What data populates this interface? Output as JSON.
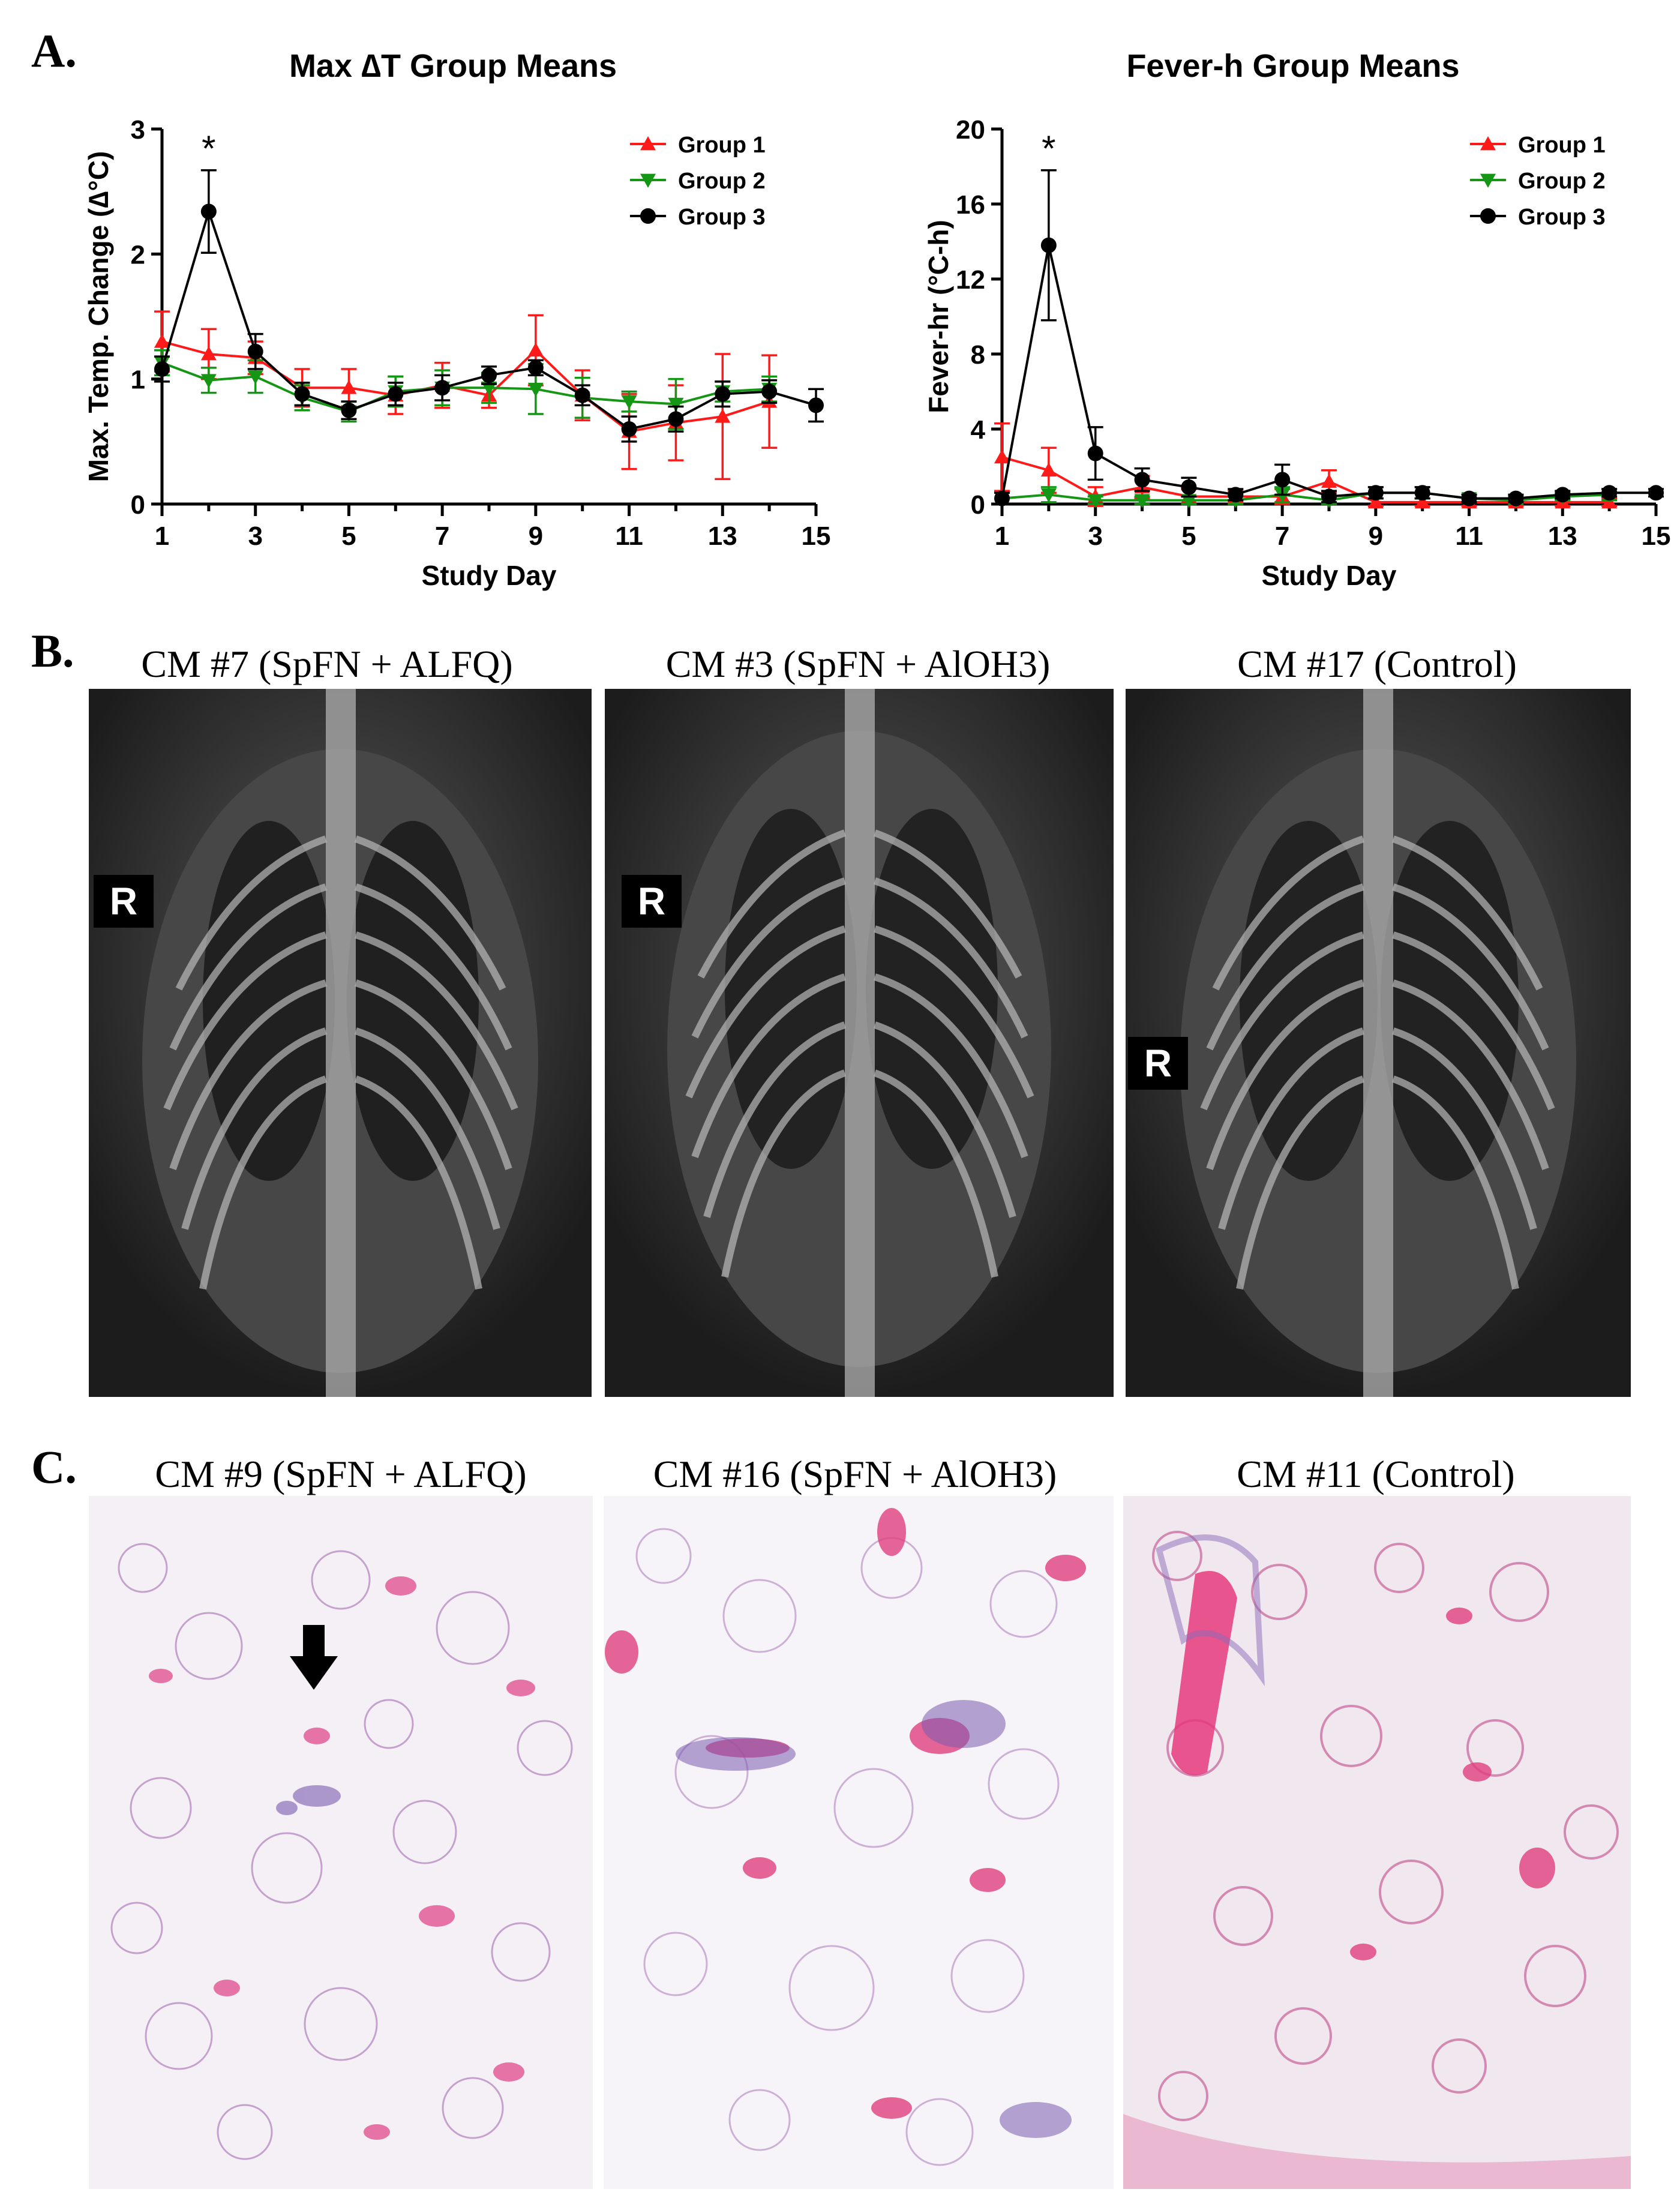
{
  "panels": {
    "a": {
      "letter": "A."
    },
    "b": {
      "letter": "B."
    },
    "c": {
      "letter": "C."
    }
  },
  "chart_data": [
    {
      "type": "line",
      "title": "Max ∆T Group Means",
      "xlabel": "Study  Day",
      "ylabel": "Max. Temp. Change (∆°C)",
      "xlim": [
        1,
        15
      ],
      "ylim": [
        0,
        3
      ],
      "xticks": [
        1,
        3,
        5,
        7,
        9,
        11,
        13,
        15
      ],
      "yticks": [
        0,
        1,
        2,
        3
      ],
      "legend_position": "top-right",
      "annotation": {
        "text": "*",
        "x": 2
      },
      "series": [
        {
          "name": "Group 1",
          "color": "#ff1a1a",
          "marker": "triangle-up",
          "x": [
            1,
            2,
            3,
            4,
            5,
            6,
            7,
            8,
            9,
            10,
            11,
            12,
            13,
            14
          ],
          "y": [
            1.3,
            1.2,
            1.17,
            0.93,
            0.93,
            0.87,
            0.95,
            0.87,
            1.23,
            0.87,
            0.58,
            0.65,
            0.7,
            0.82
          ],
          "err": [
            0.24,
            0.2,
            0.13,
            0.15,
            0.15,
            0.15,
            0.18,
            0.1,
            0.28,
            0.2,
            0.3,
            0.3,
            0.5,
            0.37
          ]
        },
        {
          "name": "Group 2",
          "color": "#159615",
          "marker": "triangle-down",
          "x": [
            1,
            2,
            3,
            4,
            5,
            6,
            7,
            8,
            9,
            10,
            11,
            12,
            13,
            14
          ],
          "y": [
            1.13,
            0.99,
            1.02,
            0.85,
            0.74,
            0.9,
            0.93,
            0.93,
            0.92,
            0.85,
            0.82,
            0.8,
            0.9,
            0.92
          ],
          "err": [
            0.1,
            0.1,
            0.13,
            0.1,
            0.08,
            0.12,
            0.14,
            0.12,
            0.2,
            0.16,
            0.08,
            0.2,
            0.08,
            0.1
          ]
        },
        {
          "name": "Group 3",
          "color": "#000000",
          "marker": "circle",
          "x": [
            1,
            2,
            3,
            4,
            5,
            6,
            7,
            8,
            9,
            10,
            11,
            12,
            13,
            14,
            15
          ],
          "y": [
            1.08,
            2.34,
            1.22,
            0.88,
            0.75,
            0.88,
            0.93,
            1.03,
            1.09,
            0.87,
            0.6,
            0.68,
            0.88,
            0.9,
            0.79
          ],
          "err": [
            0.1,
            0.33,
            0.14,
            0.09,
            0.07,
            0.09,
            0.1,
            0.07,
            0.06,
            0.08,
            0.1,
            0.1,
            0.1,
            0.09,
            0.13
          ]
        }
      ]
    },
    {
      "type": "line",
      "title": "Fever-h Group Means",
      "xlabel": "Study  Day",
      "ylabel": "Fever-hr (°C-h)",
      "xlim": [
        1,
        15
      ],
      "ylim": [
        0,
        20
      ],
      "xticks": [
        1,
        3,
        5,
        7,
        9,
        11,
        13,
        15
      ],
      "yticks": [
        0,
        4,
        8,
        12,
        16,
        20
      ],
      "legend_position": "top-right",
      "annotation": {
        "text": "*",
        "x": 2
      },
      "series": [
        {
          "name": "Group 1",
          "color": "#ff1a1a",
          "marker": "triangle-up",
          "x": [
            1,
            2,
            3,
            4,
            5,
            6,
            7,
            8,
            9,
            10,
            11,
            12,
            13,
            14
          ],
          "y": [
            2.5,
            1.8,
            0.4,
            0.9,
            0.4,
            0.4,
            0.4,
            1.2,
            0.1,
            0.1,
            0.1,
            0.1,
            0.1,
            0.1
          ],
          "err": [
            1.8,
            1.2,
            0.5,
            0.6,
            0.4,
            0.3,
            0.4,
            0.6,
            0.2,
            0.2,
            0.2,
            0.2,
            0.2,
            0.2
          ]
        },
        {
          "name": "Group 2",
          "color": "#159615",
          "marker": "triangle-down",
          "x": [
            1,
            2,
            3,
            4,
            5,
            6,
            7,
            8,
            9,
            10,
            11,
            12,
            13,
            14
          ],
          "y": [
            0.3,
            0.5,
            0.2,
            0.2,
            0.2,
            0.2,
            0.5,
            0.2,
            0.6,
            0.6,
            0.3,
            0.2,
            0.4,
            0.5
          ],
          "err": [
            0.3,
            0.4,
            0.2,
            0.2,
            0.2,
            0.2,
            0.4,
            0.2,
            0.3,
            0.3,
            0.2,
            0.2,
            0.2,
            0.3
          ]
        },
        {
          "name": "Group 3",
          "color": "#000000",
          "marker": "circle",
          "x": [
            1,
            2,
            3,
            4,
            5,
            6,
            7,
            8,
            9,
            10,
            11,
            12,
            13,
            14,
            15
          ],
          "y": [
            0.3,
            13.8,
            2.7,
            1.3,
            0.9,
            0.5,
            1.3,
            0.4,
            0.6,
            0.6,
            0.3,
            0.3,
            0.5,
            0.6,
            0.6
          ],
          "err": [
            0.3,
            4.0,
            1.4,
            0.6,
            0.5,
            0.3,
            0.8,
            0.3,
            0.3,
            0.3,
            0.2,
            0.2,
            0.2,
            0.2,
            0.2
          ]
        }
      ]
    }
  ],
  "xray_images": [
    {
      "title": "CM #7 (SpFN + ALFQ)",
      "marker": "R"
    },
    {
      "title": "CM #3 (SpFN + AlOH3)",
      "marker": "R"
    },
    {
      "title": "CM #17 (Control)",
      "marker": "R"
    }
  ],
  "histology_images": [
    {
      "title": "CM #9 (SpFN + ALFQ)",
      "arrow": "down-arrow-icon"
    },
    {
      "title": "CM #16 (SpFN + AlOH3)"
    },
    {
      "title": "CM #11 (Control)"
    }
  ]
}
